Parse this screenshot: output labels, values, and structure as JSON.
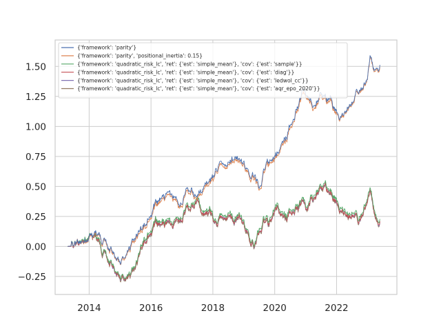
{
  "chart_data": {
    "type": "line",
    "title": "",
    "xlabel": "",
    "ylabel": "",
    "grid": true,
    "legend_position": "top-left",
    "xlim": [
      2012.9,
      2023.95
    ],
    "ylim": [
      -0.4,
      1.72
    ],
    "x_ticks": [
      2014,
      2016,
      2018,
      2020,
      2022
    ],
    "x_tick_labels": [
      "2014",
      "2016",
      "2018",
      "2020",
      "2022"
    ],
    "y_ticks": [
      -0.25,
      0.0,
      0.25,
      0.5,
      0.75,
      1.0,
      1.25,
      1.5
    ],
    "y_tick_labels": [
      "−0.25",
      "0.00",
      "0.25",
      "0.50",
      "0.75",
      "1.00",
      "1.25",
      "1.50"
    ],
    "series": [
      {
        "name": "{'framework': 'parity'}",
        "color": "#4c72b0",
        "x": [
          2013.3,
          2013.6,
          2013.85,
          2014.0,
          2014.15,
          2014.3,
          2014.45,
          2014.6,
          2014.8,
          2015.0,
          2015.2,
          2015.4,
          2015.55,
          2015.7,
          2015.85,
          2016.0,
          2016.15,
          2016.3,
          2016.5,
          2016.7,
          2016.9,
          2017.1,
          2017.3,
          2017.5,
          2017.6,
          2017.75,
          2017.9,
          2018.0,
          2018.1,
          2018.25,
          2018.4,
          2018.55,
          2018.7,
          2018.85,
          2019.0,
          2019.2,
          2019.35,
          2019.5,
          2019.65,
          2019.8,
          2020.0,
          2020.1,
          2020.2,
          2020.35,
          2020.5,
          2020.65,
          2020.8,
          2020.95,
          2021.05,
          2021.2,
          2021.35,
          2021.5,
          2021.65,
          2021.8,
          2021.95,
          2022.1,
          2022.25,
          2022.4,
          2022.55,
          2022.7,
          2022.85,
          2023.0,
          2023.1,
          2023.2,
          2023.3,
          2023.4
        ],
        "y": [
          0.0,
          0.01,
          0.04,
          0.09,
          0.1,
          0.11,
          0.06,
          0.0,
          -0.07,
          -0.14,
          -0.08,
          0.04,
          0.1,
          0.13,
          0.2,
          0.29,
          0.34,
          0.38,
          0.42,
          0.4,
          0.36,
          0.43,
          0.48,
          0.4,
          0.45,
          0.5,
          0.55,
          0.58,
          0.65,
          0.69,
          0.72,
          0.7,
          0.73,
          0.7,
          0.68,
          0.62,
          0.58,
          0.5,
          0.62,
          0.7,
          0.75,
          0.8,
          0.84,
          0.9,
          1.0,
          1.1,
          1.2,
          1.3,
          1.25,
          1.18,
          1.2,
          1.27,
          1.24,
          1.25,
          1.15,
          1.1,
          1.12,
          1.2,
          1.25,
          1.32,
          1.33,
          1.42,
          1.61,
          1.5,
          1.45,
          1.5
        ]
      },
      {
        "name": "{'framework': 'parity', 'positional_inertia': 0.15}",
        "color": "#dd8452",
        "x": [
          2013.3,
          2013.6,
          2013.85,
          2014.0,
          2014.15,
          2014.3,
          2014.45,
          2014.6,
          2014.8,
          2015.0,
          2015.2,
          2015.4,
          2015.55,
          2015.7,
          2015.85,
          2016.0,
          2016.15,
          2016.3,
          2016.5,
          2016.7,
          2016.9,
          2017.1,
          2017.3,
          2017.5,
          2017.6,
          2017.75,
          2017.9,
          2018.0,
          2018.1,
          2018.25,
          2018.4,
          2018.55,
          2018.7,
          2018.85,
          2019.0,
          2019.2,
          2019.35,
          2019.5,
          2019.65,
          2019.8,
          2020.0,
          2020.1,
          2020.2,
          2020.35,
          2020.5,
          2020.65,
          2020.8,
          2020.95,
          2021.05,
          2021.2,
          2021.35,
          2021.5,
          2021.65,
          2021.8,
          2021.95,
          2022.1,
          2022.25,
          2022.4,
          2022.55,
          2022.7,
          2022.85,
          2023.0,
          2023.1,
          2023.2,
          2023.3,
          2023.4
        ],
        "y": [
          0.0,
          0.01,
          0.03,
          0.08,
          0.09,
          0.1,
          0.05,
          -0.01,
          -0.08,
          -0.15,
          -0.09,
          0.02,
          0.08,
          0.11,
          0.18,
          0.27,
          0.32,
          0.36,
          0.4,
          0.38,
          0.34,
          0.41,
          0.46,
          0.38,
          0.43,
          0.48,
          0.53,
          0.56,
          0.63,
          0.67,
          0.7,
          0.68,
          0.71,
          0.68,
          0.66,
          0.6,
          0.56,
          0.48,
          0.6,
          0.68,
          0.73,
          0.78,
          0.82,
          0.88,
          0.98,
          1.08,
          1.18,
          1.27,
          1.23,
          1.16,
          1.18,
          1.25,
          1.22,
          1.23,
          1.13,
          1.09,
          1.11,
          1.19,
          1.24,
          1.31,
          1.32,
          1.41,
          1.6,
          1.49,
          1.44,
          1.49
        ]
      },
      {
        "name": "{'framework': 'quadratic_risk_lc', 'ret': {'est': 'simple_mean'}, 'cov': {'est': 'sample'}}",
        "color": "#55a868",
        "x": [
          2013.3,
          2013.6,
          2013.85,
          2014.0,
          2014.15,
          2014.3,
          2014.45,
          2014.6,
          2014.8,
          2015.0,
          2015.2,
          2015.4,
          2015.55,
          2015.7,
          2015.85,
          2016.0,
          2016.15,
          2016.3,
          2016.5,
          2016.7,
          2016.9,
          2017.1,
          2017.3,
          2017.5,
          2017.6,
          2017.75,
          2017.9,
          2018.0,
          2018.1,
          2018.25,
          2018.4,
          2018.55,
          2018.7,
          2018.85,
          2019.0,
          2019.2,
          2019.35,
          2019.5,
          2019.65,
          2019.8,
          2020.0,
          2020.1,
          2020.2,
          2020.35,
          2020.5,
          2020.65,
          2020.8,
          2020.95,
          2021.05,
          2021.2,
          2021.35,
          2021.5,
          2021.65,
          2021.8,
          2021.95,
          2022.1,
          2022.25,
          2022.4,
          2022.55,
          2022.7,
          2022.85,
          2023.0,
          2023.1,
          2023.2,
          2023.3,
          2023.4
        ],
        "y": [
          0.0,
          0.01,
          0.06,
          0.1,
          0.09,
          0.07,
          -0.03,
          -0.1,
          -0.18,
          -0.26,
          -0.27,
          -0.2,
          -0.12,
          0.0,
          0.08,
          0.16,
          0.2,
          0.19,
          0.2,
          0.17,
          0.25,
          0.3,
          0.35,
          0.4,
          0.32,
          0.27,
          0.32,
          0.26,
          0.22,
          0.25,
          0.3,
          0.28,
          0.21,
          0.25,
          0.19,
          0.1,
          0.0,
          0.16,
          0.22,
          0.2,
          0.32,
          0.38,
          0.28,
          0.26,
          0.3,
          0.33,
          0.35,
          0.38,
          0.32,
          0.42,
          0.46,
          0.5,
          0.53,
          0.47,
          0.42,
          0.35,
          0.31,
          0.3,
          0.32,
          0.25,
          0.3,
          0.42,
          0.5,
          0.35,
          0.2,
          0.22
        ]
      },
      {
        "name": "{'framework': 'quadratic_risk_lc', 'ret': {'est': 'simple_mean'}, 'cov': {'est': 'diag'}}",
        "color": "#c44e52",
        "x": [
          2013.3,
          2013.6,
          2013.85,
          2014.0,
          2014.15,
          2014.3,
          2014.45,
          2014.6,
          2014.8,
          2015.0,
          2015.2,
          2015.4,
          2015.55,
          2015.7,
          2015.85,
          2016.0,
          2016.15,
          2016.3,
          2016.5,
          2016.7,
          2016.9,
          2017.1,
          2017.3,
          2017.5,
          2017.6,
          2017.75,
          2017.9,
          2018.0,
          2018.1,
          2018.25,
          2018.4,
          2018.55,
          2018.7,
          2018.85,
          2019.0,
          2019.2,
          2019.35,
          2019.5,
          2019.65,
          2019.8,
          2020.0,
          2020.1,
          2020.2,
          2020.35,
          2020.5,
          2020.65,
          2020.8,
          2020.95,
          2021.05,
          2021.2,
          2021.35,
          2021.5,
          2021.65,
          2021.8,
          2021.95,
          2022.1,
          2022.25,
          2022.4,
          2022.55,
          2022.7,
          2022.85,
          2023.0,
          2023.1,
          2023.2,
          2023.3,
          2023.4
        ],
        "y": [
          0.0,
          0.0,
          0.05,
          0.09,
          0.08,
          0.06,
          -0.04,
          -0.11,
          -0.19,
          -0.27,
          -0.28,
          -0.21,
          -0.13,
          -0.02,
          0.06,
          0.14,
          0.18,
          0.17,
          0.18,
          0.15,
          0.23,
          0.28,
          0.33,
          0.38,
          0.3,
          0.25,
          0.3,
          0.24,
          0.2,
          0.23,
          0.28,
          0.26,
          0.19,
          0.23,
          0.17,
          0.08,
          -0.01,
          0.14,
          0.2,
          0.18,
          0.3,
          0.36,
          0.26,
          0.24,
          0.28,
          0.31,
          0.33,
          0.36,
          0.3,
          0.4,
          0.44,
          0.48,
          0.51,
          0.45,
          0.4,
          0.33,
          0.29,
          0.28,
          0.3,
          0.23,
          0.28,
          0.4,
          0.48,
          0.33,
          0.18,
          0.2
        ]
      },
      {
        "name": "{'framework': 'quadratic_risk_lc', 'ret': {'est': 'simple_mean'}, 'cov': {'est': 'ledwol_cc'}}",
        "color": "#8172b3",
        "x": [
          2013.3,
          2013.6,
          2013.85,
          2014.0,
          2014.15,
          2014.3,
          2014.45,
          2014.6,
          2014.8,
          2015.0,
          2015.2,
          2015.4,
          2015.55,
          2015.7,
          2015.85,
          2016.0,
          2016.15,
          2016.3,
          2016.5,
          2016.7,
          2016.9,
          2017.1,
          2017.3,
          2017.5,
          2017.6,
          2017.75,
          2017.9,
          2018.0,
          2018.1,
          2018.25,
          2018.4,
          2018.55,
          2018.7,
          2018.85,
          2019.0,
          2019.2,
          2019.35,
          2019.5,
          2019.65,
          2019.8,
          2020.0,
          2020.1,
          2020.2,
          2020.35,
          2020.5,
          2020.65,
          2020.8,
          2020.95,
          2021.05,
          2021.2,
          2021.35,
          2021.5,
          2021.65,
          2021.8,
          2021.95,
          2022.1,
          2022.25,
          2022.4,
          2022.55,
          2022.7,
          2022.85,
          2023.0,
          2023.1,
          2023.2,
          2023.3,
          2023.4
        ],
        "y": [
          0.0,
          0.0,
          0.05,
          0.09,
          0.08,
          0.06,
          -0.04,
          -0.11,
          -0.2,
          -0.27,
          -0.28,
          -0.21,
          -0.13,
          -0.02,
          0.06,
          0.14,
          0.18,
          0.17,
          0.18,
          0.15,
          0.23,
          0.28,
          0.33,
          0.38,
          0.3,
          0.25,
          0.3,
          0.24,
          0.2,
          0.23,
          0.28,
          0.26,
          0.19,
          0.23,
          0.17,
          0.08,
          -0.01,
          0.14,
          0.2,
          0.18,
          0.3,
          0.36,
          0.26,
          0.24,
          0.28,
          0.31,
          0.33,
          0.36,
          0.3,
          0.4,
          0.44,
          0.48,
          0.51,
          0.45,
          0.4,
          0.33,
          0.29,
          0.28,
          0.3,
          0.23,
          0.28,
          0.4,
          0.48,
          0.33,
          0.18,
          0.2
        ]
      },
      {
        "name": "{'framework': 'quadratic_risk_lc', 'ret': {'est': 'simple_mean'}, 'cov': {'est': 'aqr_epo_2020'}}",
        "color": "#937860",
        "x": [
          2013.3,
          2013.6,
          2013.85,
          2014.0,
          2014.15,
          2014.3,
          2014.45,
          2014.6,
          2014.8,
          2015.0,
          2015.2,
          2015.4,
          2015.55,
          2015.7,
          2015.85,
          2016.0,
          2016.15,
          2016.3,
          2016.5,
          2016.7,
          2016.9,
          2017.1,
          2017.3,
          2017.5,
          2017.6,
          2017.75,
          2017.9,
          2018.0,
          2018.1,
          2018.25,
          2018.4,
          2018.55,
          2018.7,
          2018.85,
          2019.0,
          2019.2,
          2019.35,
          2019.5,
          2019.65,
          2019.8,
          2020.0,
          2020.1,
          2020.2,
          2020.35,
          2020.5,
          2020.65,
          2020.8,
          2020.95,
          2021.05,
          2021.2,
          2021.35,
          2021.5,
          2021.65,
          2021.8,
          2021.95,
          2022.1,
          2022.25,
          2022.4,
          2022.55,
          2022.7,
          2022.85,
          2023.0,
          2023.1,
          2023.2,
          2023.3,
          2023.4
        ],
        "y": [
          0.0,
          0.0,
          0.05,
          0.09,
          0.08,
          0.05,
          -0.05,
          -0.12,
          -0.2,
          -0.28,
          -0.29,
          -0.22,
          -0.14,
          -0.03,
          0.05,
          0.13,
          0.17,
          0.16,
          0.17,
          0.14,
          0.22,
          0.27,
          0.32,
          0.37,
          0.29,
          0.24,
          0.29,
          0.23,
          0.19,
          0.22,
          0.27,
          0.25,
          0.18,
          0.22,
          0.16,
          0.07,
          -0.02,
          0.13,
          0.19,
          0.17,
          0.29,
          0.35,
          0.25,
          0.23,
          0.27,
          0.3,
          0.32,
          0.35,
          0.29,
          0.39,
          0.43,
          0.47,
          0.5,
          0.44,
          0.39,
          0.32,
          0.28,
          0.27,
          0.29,
          0.22,
          0.27,
          0.39,
          0.47,
          0.32,
          0.17,
          0.19
        ]
      }
    ]
  }
}
